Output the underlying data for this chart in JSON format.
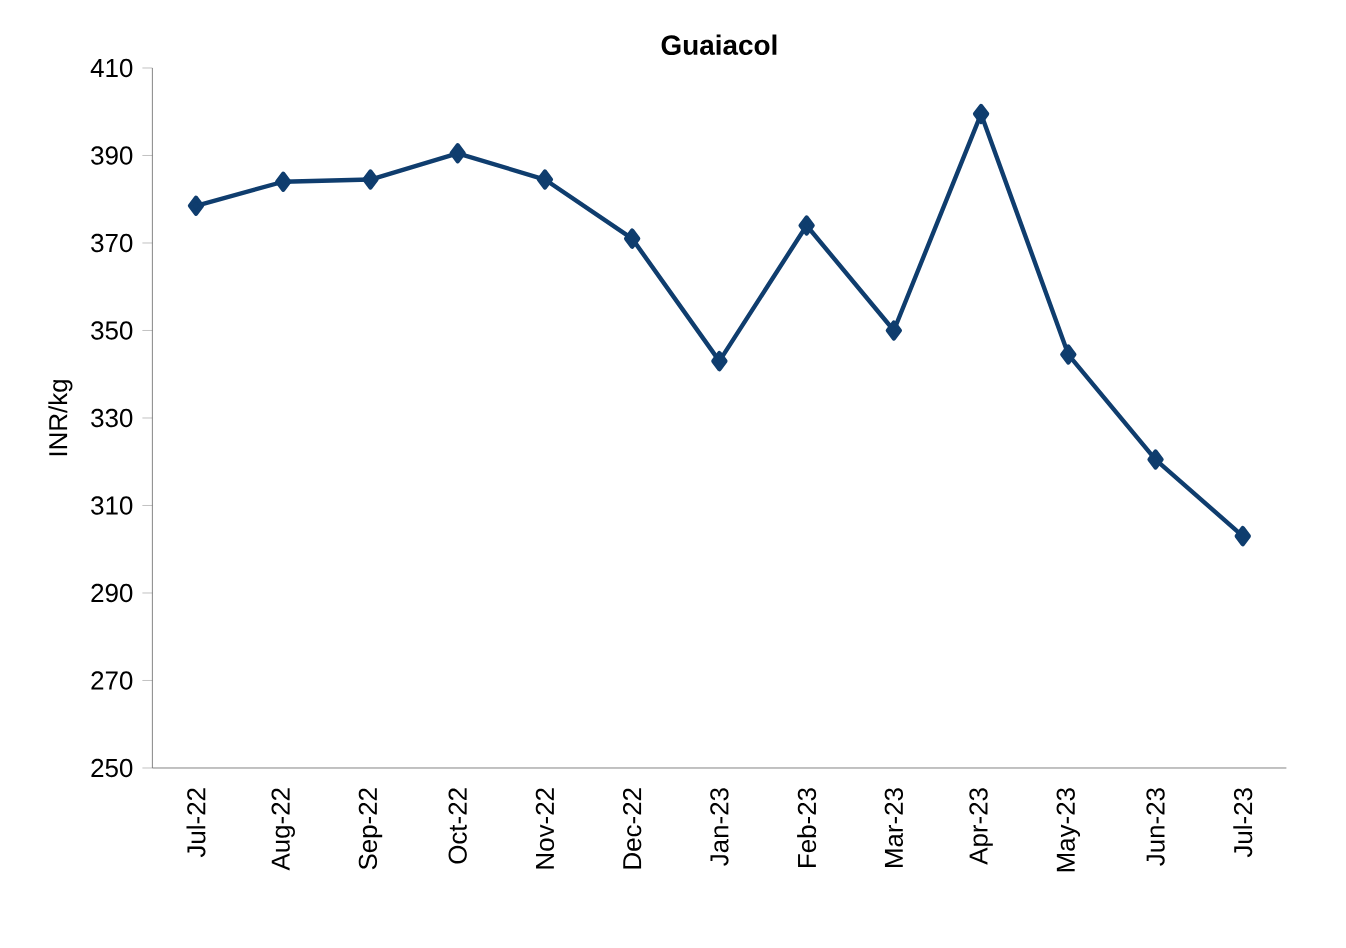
{
  "chart_data": {
    "type": "line",
    "title": "Guaiacol",
    "ylabel": "INR/kg",
    "categories": [
      "Jul-22",
      "Aug-22",
      "Sep-22",
      "Oct-22",
      "Nov-22",
      "Dec-22",
      "Jan-23",
      "Feb-23",
      "Mar-23",
      "Apr-23",
      "May-23",
      "Jun-23",
      "Jul-23"
    ],
    "values": [
      378.5,
      384,
      384.5,
      390.5,
      384.5,
      371,
      343,
      374,
      350,
      399.5,
      344.5,
      320.5,
      303
    ],
    "color": "#0f3d6e",
    "marker": "diamond",
    "line_style": "solid",
    "ylim": [
      250,
      410
    ],
    "yticks": [
      250,
      270,
      290,
      310,
      330,
      350,
      370,
      390,
      410
    ]
  }
}
